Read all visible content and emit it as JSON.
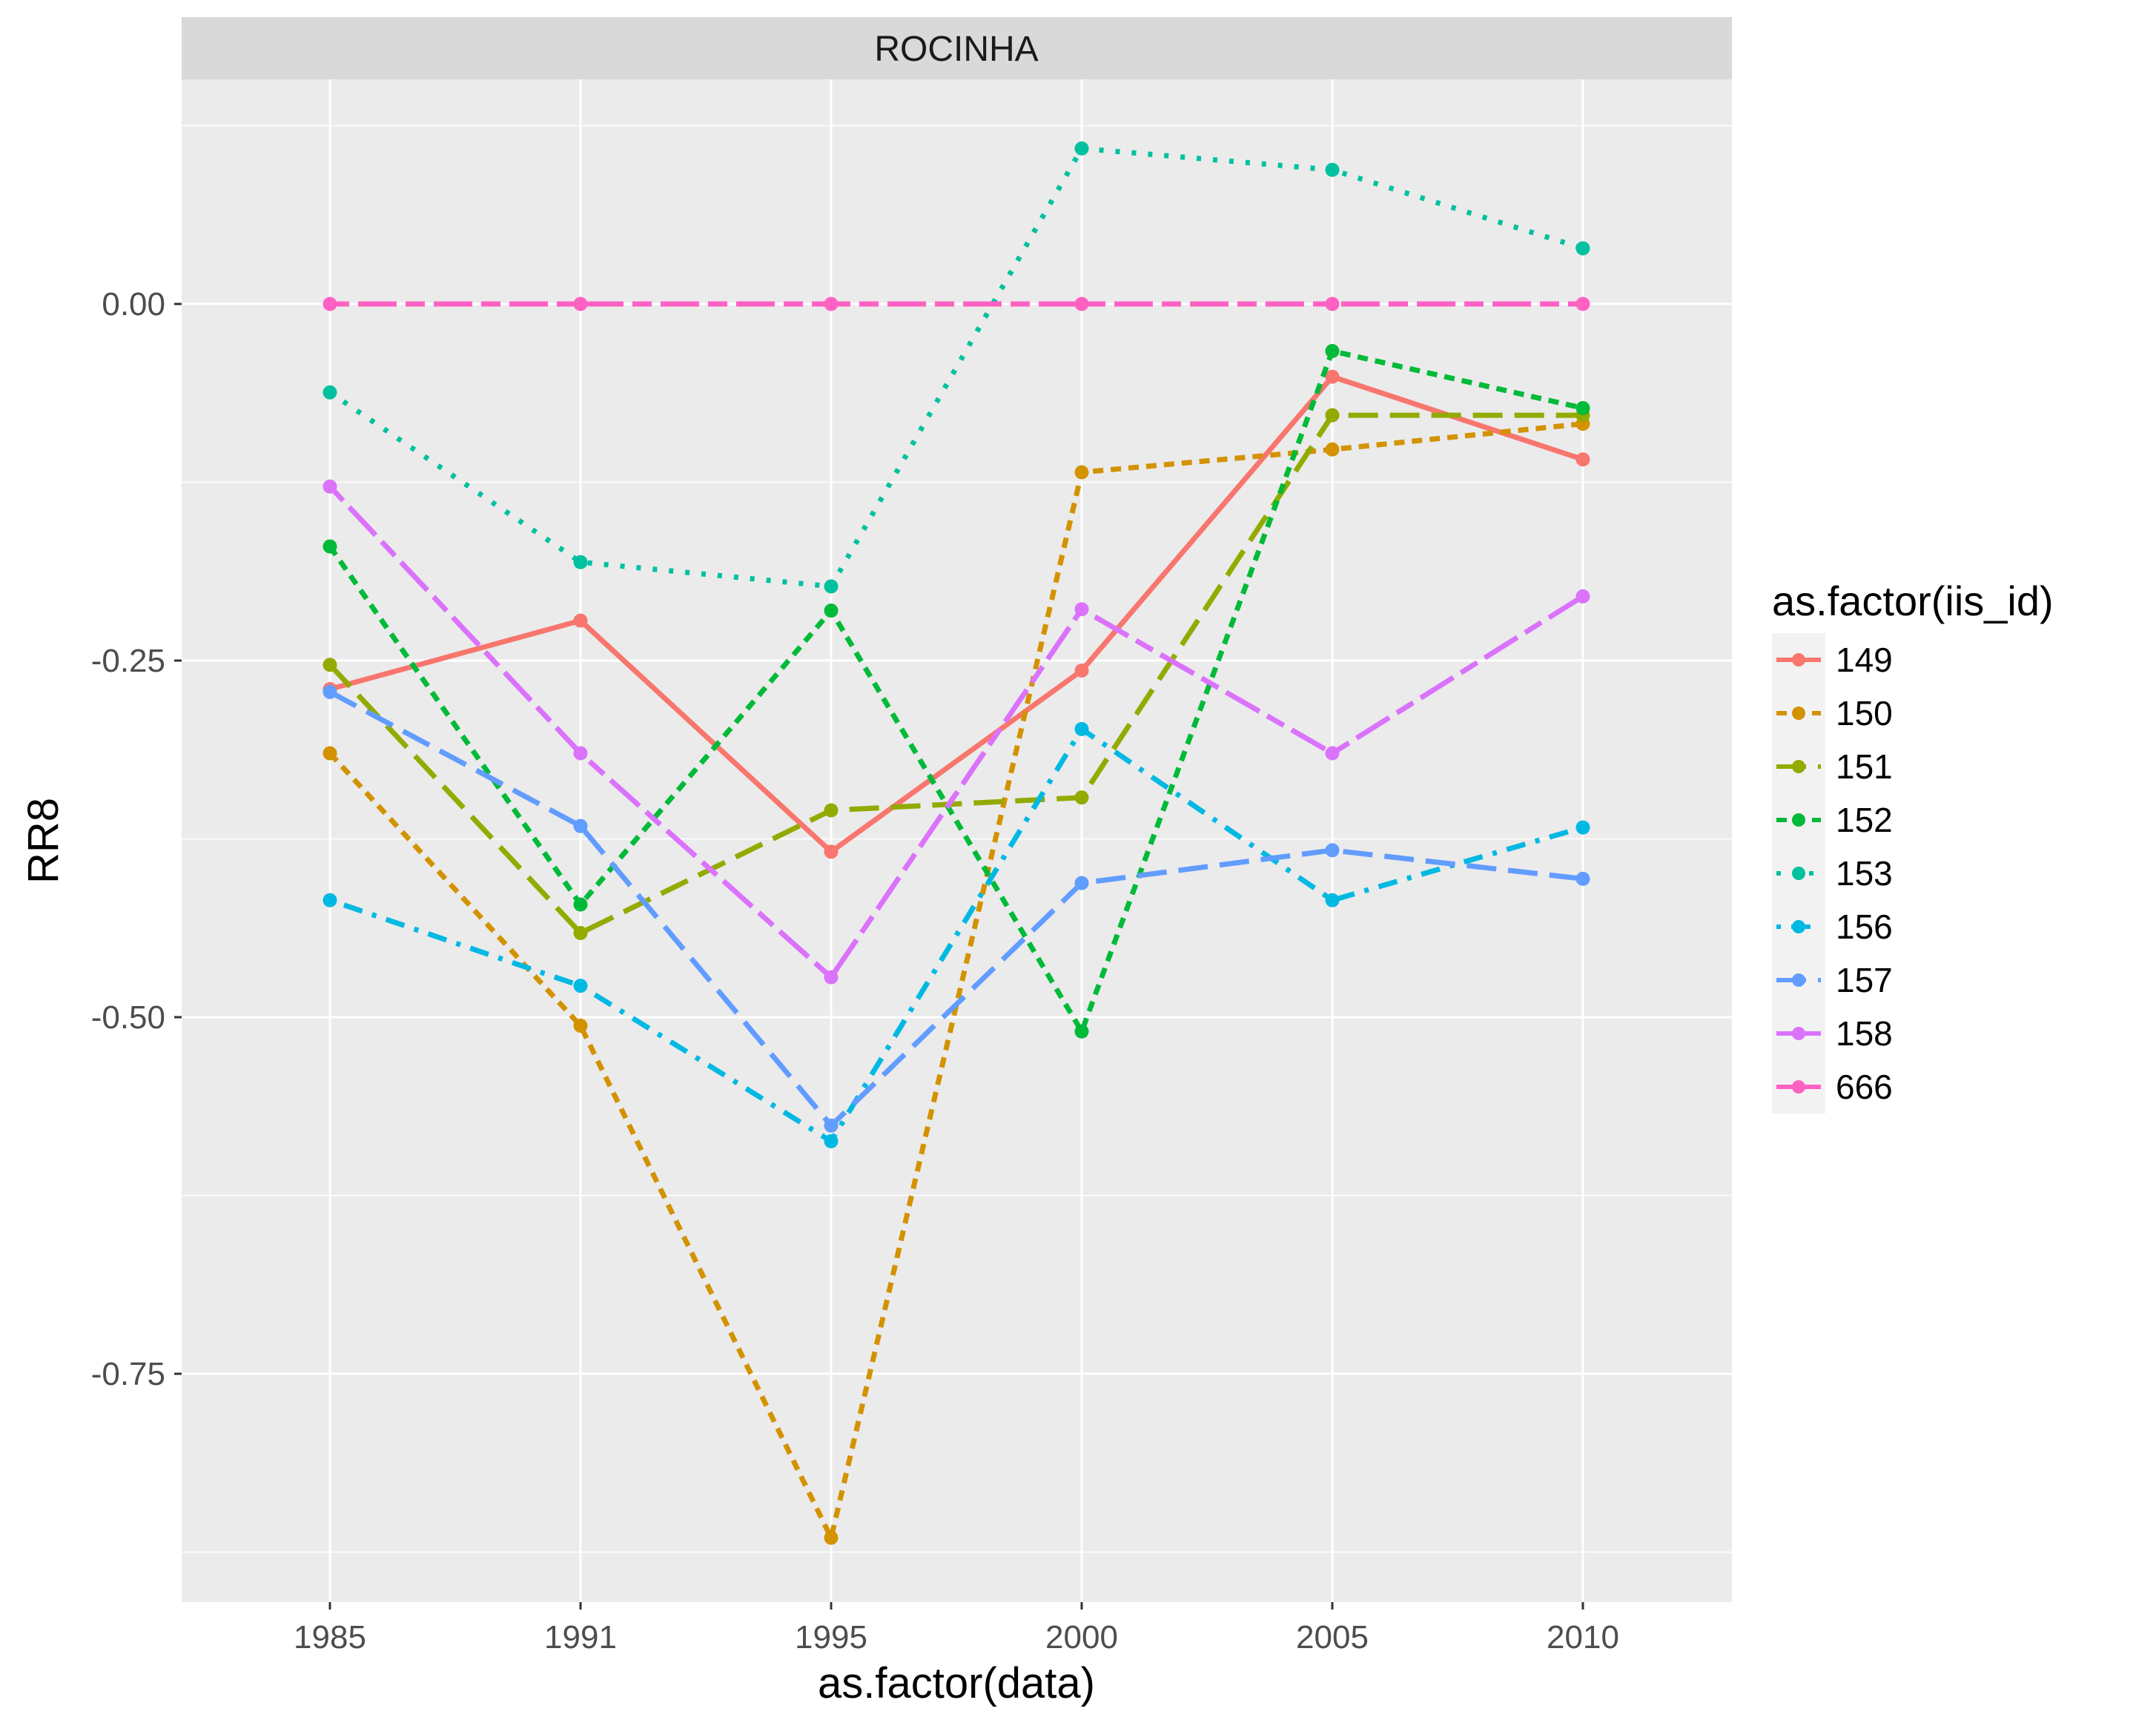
{
  "chart_data": {
    "type": "line",
    "facet_label": "ROCINHA",
    "xlabel": "as.factor(data)",
    "ylabel": "RR8",
    "legend_title": "as.factor(iis_id)",
    "legend_position": "right",
    "grid": true,
    "categories": [
      "1985",
      "1991",
      "1995",
      "2000",
      "2005",
      "2010"
    ],
    "ylim": [
      -0.915,
      0.16
    ],
    "yticks": [
      0.0,
      -0.25,
      -0.5,
      -0.75
    ],
    "ytick_labels": [
      "0.00",
      "-0.25",
      "-0.50",
      "-0.75"
    ],
    "series": [
      {
        "name": "149",
        "color": "#F8766D",
        "linetype": "solid",
        "values": [
          -0.27,
          -0.222,
          -0.384,
          -0.257,
          -0.051,
          -0.109
        ]
      },
      {
        "name": "150",
        "color": "#D39200",
        "linetype": "dashed",
        "values": [
          -0.315,
          -0.506,
          -0.865,
          -0.118,
          -0.102,
          -0.084
        ]
      },
      {
        "name": "151",
        "color": "#93AA00",
        "linetype": "longdash",
        "values": [
          -0.253,
          -0.441,
          -0.355,
          -0.346,
          -0.078,
          -0.078
        ]
      },
      {
        "name": "152",
        "color": "#00BA38",
        "linetype": "dashed",
        "values": [
          -0.17,
          -0.421,
          -0.215,
          -0.51,
          -0.033,
          -0.073
        ]
      },
      {
        "name": "153",
        "color": "#00C19F",
        "linetype": "dotted",
        "values": [
          -0.062,
          -0.181,
          -0.198,
          0.109,
          0.094,
          0.039
        ]
      },
      {
        "name": "156",
        "color": "#00B9E3",
        "linetype": "dotdash",
        "values": [
          -0.418,
          -0.478,
          -0.587,
          -0.298,
          -0.418,
          -0.367
        ]
      },
      {
        "name": "157",
        "color": "#619CFF",
        "linetype": "longdash",
        "values": [
          -0.272,
          -0.366,
          -0.576,
          -0.406,
          -0.383,
          -0.403
        ]
      },
      {
        "name": "158",
        "color": "#DB72FB",
        "linetype": "twodash",
        "values": [
          -0.128,
          -0.315,
          -0.472,
          -0.214,
          -0.315,
          -0.205
        ]
      },
      {
        "name": "666",
        "color": "#FF61C3",
        "linetype": "twodash",
        "values": [
          0.0,
          0.0,
          0.0,
          0.0,
          0.0,
          0.0
        ]
      }
    ]
  }
}
